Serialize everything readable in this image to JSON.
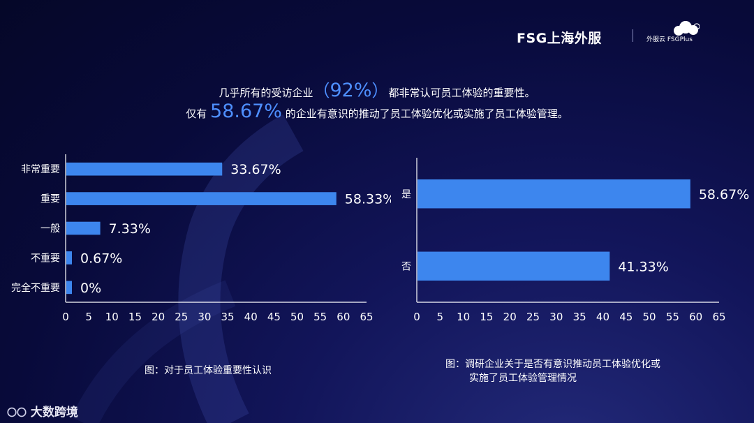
{
  "header": {
    "logo_main": "FSG上海外服",
    "logo_sub": "外服云 FSGPlus"
  },
  "headline": {
    "line1_pre": "几乎所有的受访企业",
    "line1_paren_open": "（",
    "line1_highlight": "92%",
    "line1_paren_close": "）",
    "line1_post": "都非常认可员工体验的重要性。",
    "line2_pre": "仅有",
    "line2_highlight": "58.67%",
    "line2_post": "的企业有意识的推动了员工体验优化或实施了员工体验管理。"
  },
  "chart_data": [
    {
      "type": "bar",
      "orientation": "horizontal",
      "categories": [
        "非常重要",
        "重要",
        "一般",
        "不重要",
        "完全不重要"
      ],
      "values": [
        33.67,
        58.33,
        7.33,
        0.67,
        0
      ],
      "value_labels": [
        "33.67%",
        "58.33%",
        "7.33%",
        "0.67%",
        "0%"
      ],
      "xlim": [
        0,
        65
      ],
      "xticks": [
        0,
        5,
        10,
        15,
        20,
        25,
        30,
        35,
        40,
        45,
        50,
        55,
        60,
        65
      ],
      "bar_color": "#3d86ee",
      "caption": "图：对于员工体验重要性认识"
    },
    {
      "type": "bar",
      "orientation": "horizontal",
      "categories": [
        "是",
        "否"
      ],
      "values": [
        58.67,
        41.33
      ],
      "value_labels": [
        "58.67%",
        "41.33%"
      ],
      "xlim": [
        0,
        65
      ],
      "xticks": [
        0,
        5,
        10,
        15,
        20,
        25,
        30,
        35,
        40,
        45,
        50,
        55,
        60,
        65
      ],
      "bar_color": "#3d86ee",
      "caption_line1": "图：调研企业关于是否有意识推动员工体验优化或",
      "caption_line2": "实施了员工体验管理情况"
    }
  ],
  "footer": {
    "brand": "大数跨境"
  }
}
